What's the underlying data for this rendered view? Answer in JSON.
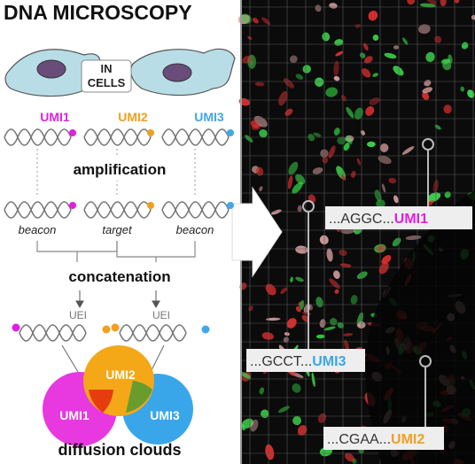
{
  "title": "DNA MICROSCOPY",
  "cell_label": [
    "IN",
    "CELLS"
  ],
  "umi_labels": [
    "UMI1",
    "UMI2",
    "UMI3"
  ],
  "steps": [
    "amplification",
    "concatenation"
  ],
  "molecule_roles": [
    "beacon",
    "target",
    "beacon"
  ],
  "uei_labels": [
    "UEI",
    "UEI"
  ],
  "clouds": [
    "UMI2",
    "UMI1",
    "UMI3"
  ],
  "caption": "diffusion clouds",
  "readouts": [
    {
      "sequence": "...AGGC...",
      "umi": "UMI1"
    },
    {
      "sequence": "...GCCT...",
      "umi": "UMI3"
    },
    {
      "sequence": "...CGAA...",
      "umi": "UMI2"
    }
  ]
}
